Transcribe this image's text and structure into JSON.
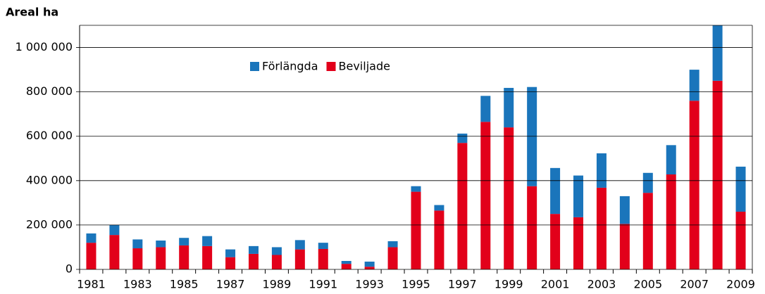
{
  "chart_data": {
    "type": "stacked_bar",
    "y_label": "Areal ha",
    "categories": [
      "1981",
      null,
      "1983",
      null,
      "1985",
      null,
      "1987",
      null,
      "1989",
      null,
      "1991",
      null,
      "1993",
      null,
      "1995",
      null,
      "1997",
      null,
      "1999",
      null,
      "2001",
      null,
      "2003",
      null,
      "2005",
      null,
      "2007",
      null,
      "2009"
    ],
    "series": [
      {
        "name": "Beviljade",
        "color": "#e2001a",
        "values": [
          120000,
          155000,
          95000,
          100000,
          108000,
          105000,
          55000,
          70000,
          65000,
          90000,
          92000,
          25000,
          12000,
          100000,
          350000,
          265000,
          570000,
          665000,
          640000,
          375000,
          250000,
          235000,
          368000,
          205000,
          345000,
          428000,
          760000,
          850000,
          260000
        ]
      },
      {
        "name": "Förlängda",
        "color": "#1a75bb",
        "values": [
          42000,
          45000,
          40000,
          30000,
          34000,
          45000,
          35000,
          35000,
          35000,
          42000,
          28000,
          13000,
          23000,
          27000,
          25000,
          25000,
          42000,
          117000,
          178000,
          447000,
          207000,
          188000,
          155000,
          125000,
          90000,
          132000,
          140000,
          300000,
          203000
        ]
      }
    ],
    "legend_order": [
      1,
      0
    ],
    "ylim": [
      0,
      1100000
    ],
    "yticks": [
      0,
      {
        "value": 200000,
        "label": "200 000"
      },
      {
        "value": 400000,
        "label": "400 000"
      },
      {
        "value": 600000,
        "label": "600 000"
      },
      {
        "value": 800000,
        "label": "800 000"
      },
      {
        "value": 1000000,
        "label": "1 000 000"
      }
    ],
    "grid": true
  }
}
